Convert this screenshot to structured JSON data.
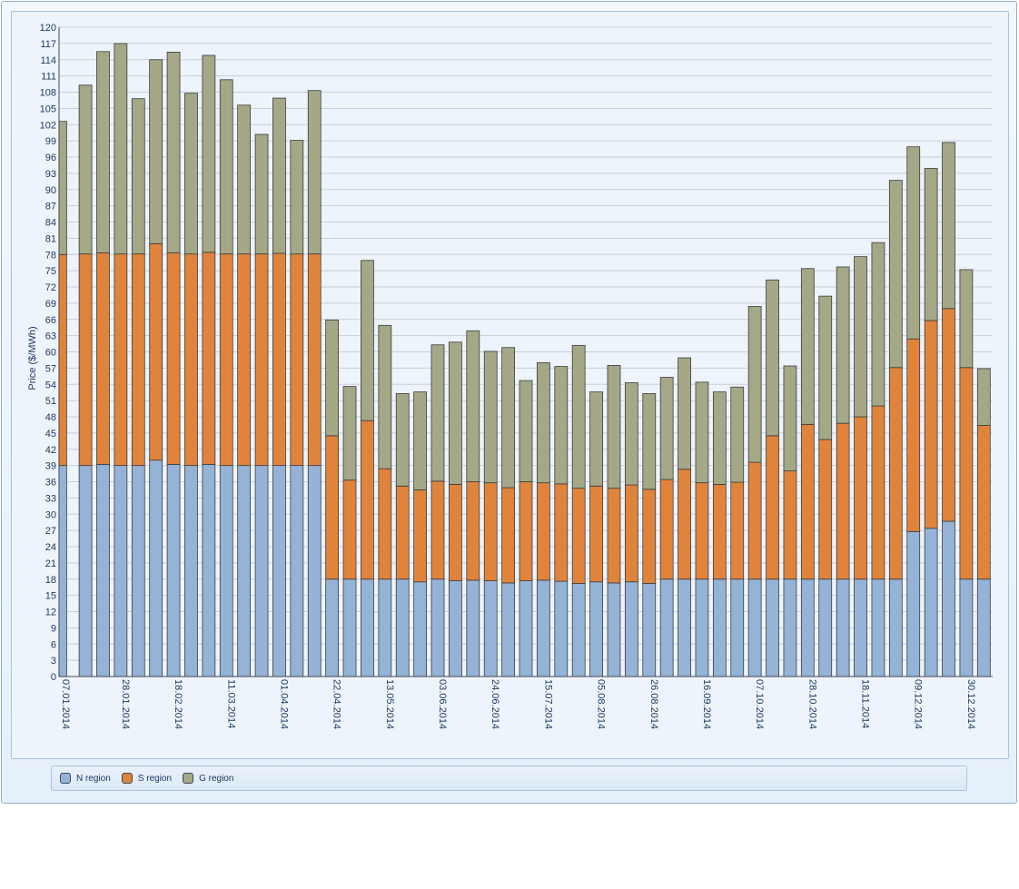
{
  "chart_data": {
    "type": "bar",
    "stacked": true,
    "ylabel": "Price ($/MWh)",
    "xlabel": "",
    "ylim": [
      0,
      120
    ],
    "ytick_step": 3,
    "grid": true,
    "legend_position": "bottom",
    "x_tick_labels": [
      "07.01.2014",
      "28.01.2014",
      "18.02.2014",
      "11.03.2014",
      "01.04.2014",
      "22.04.2014",
      "13.05.2014",
      "03.06.2014",
      "24.06.2014",
      "15.07.2014",
      "05.08.2014",
      "26.08.2014",
      "16.09.2014",
      "07.10.2014",
      "28.10.2014",
      "18.11.2014",
      "09.12.2014",
      "30.12.2014"
    ],
    "x_tick_every": 3,
    "series": [
      {
        "name": "N region",
        "color": "#95b3d7",
        "values": [
          39,
          39,
          39.2,
          39,
          39,
          40,
          39.2,
          39,
          39.2,
          39,
          39,
          39,
          39,
          39,
          39,
          18,
          18,
          18,
          18,
          18,
          17.5,
          18,
          17.7,
          17.8,
          17.7,
          17.3,
          17.7,
          17.8,
          17.6,
          17.2,
          17.5,
          17.3,
          17.5,
          17.2,
          18,
          18,
          18,
          18,
          18,
          18,
          18,
          18,
          18,
          18,
          18,
          18,
          18,
          18,
          26.8,
          27.4,
          28.7,
          18,
          18
        ]
      },
      {
        "name": "S region",
        "color": "#e0843c",
        "values": [
          39,
          39.1,
          39.1,
          39.1,
          39.1,
          40,
          39.1,
          39.1,
          39.2,
          39.1,
          39.1,
          39.1,
          39.2,
          39.1,
          39.1,
          26.5,
          18.3,
          29.3,
          20.4,
          17.2,
          17,
          18.1,
          17.8,
          18.2,
          18.1,
          17.6,
          18.3,
          18,
          18,
          17.6,
          17.7,
          17.5,
          17.9,
          17.4,
          18.4,
          20.3,
          17.8,
          17.5,
          17.9,
          21.6,
          26.5,
          20,
          28.6,
          25.8,
          28.8,
          30,
          32,
          39.1,
          35.6,
          38.4,
          39.3,
          39.1,
          28.4
        ]
      },
      {
        "name": "G region",
        "color": "#a4a886",
        "values": [
          24.6,
          31.2,
          37.2,
          38.9,
          28.7,
          34,
          37.1,
          29.7,
          36.4,
          32.2,
          27.5,
          22.1,
          28.7,
          21,
          30.2,
          21.4,
          17.3,
          29.6,
          26.5,
          17.1,
          18.1,
          25.2,
          26.3,
          27.9,
          24.3,
          25.9,
          18.7,
          22.2,
          21.7,
          26.4,
          17.4,
          22.7,
          18.9,
          17.7,
          18.9,
          20.6,
          18.6,
          17.1,
          17.6,
          28.8,
          28.8,
          19.4,
          28.8,
          26.5,
          28.9,
          29.6,
          30.2,
          34.6,
          35.5,
          28.1,
          30.7,
          18.1,
          10.5
        ]
      }
    ]
  }
}
